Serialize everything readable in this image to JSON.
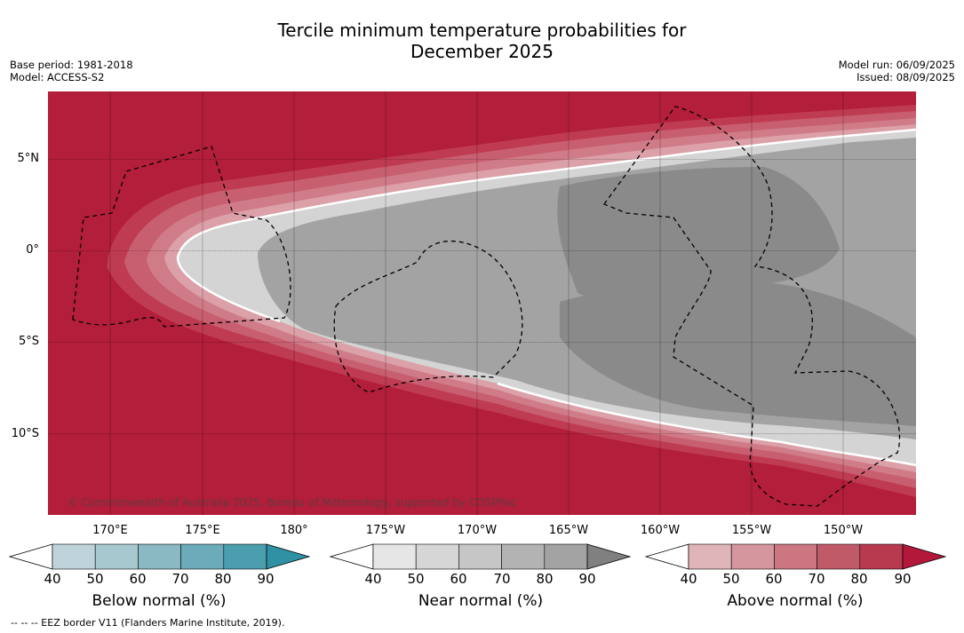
{
  "title_line1": "Tercile minimum temperature probabilities for",
  "title_line2": "December 2025",
  "meta": {
    "base_period": "Base period: 1981-2018",
    "model": "Model: ACCESS-S2",
    "model_run": "Model run: 06/09/2025",
    "issued": "Issued: 08/09/2025"
  },
  "map": {
    "lat_labels": [
      "5°N",
      "0°",
      "5°S",
      "10°S"
    ],
    "lon_labels": [
      "170°E",
      "175°E",
      "180°",
      "175°W",
      "170°W",
      "165°W",
      "160°W",
      "155°W",
      "150°W"
    ],
    "credit": "© Commonwealth of Australia 2025, Bureau of Meteorology, supported by COSPPac",
    "region_colors": {
      "above_90": "#b31e3a",
      "above_80": "#bf3b52",
      "above_70": "#c85f70",
      "above_60": "#d07b88",
      "above_50": "#dba0a8",
      "near_50": "#d4d4d4",
      "near_70": "#a3a3a3",
      "near_90": "#8a8a8a"
    }
  },
  "colorbars": {
    "below": {
      "title": "Below normal (%)",
      "ticks": [
        "40",
        "50",
        "60",
        "70",
        "80",
        "90"
      ],
      "colors": [
        "#bed3da",
        "#a8c8d0",
        "#8ab8c3",
        "#6babba",
        "#4b9ead",
        "#2f91a3"
      ]
    },
    "near": {
      "title": "Near normal (%)",
      "ticks": [
        "40",
        "50",
        "60",
        "70",
        "80",
        "90"
      ],
      "colors": [
        "#e6e6e6",
        "#d6d6d6",
        "#c6c6c6",
        "#b3b3b3",
        "#a3a3a3",
        "#808080"
      ]
    },
    "above": {
      "title": "Above normal (%)",
      "ticks": [
        "40",
        "50",
        "60",
        "70",
        "80",
        "90"
      ],
      "colors": [
        "#e0b5ba",
        "#d6969e",
        "#cb7681",
        "#c15a68",
        "#b73a4f",
        "#b3173a"
      ]
    }
  },
  "footnote": "--  --  -- EEZ border V11 (Flanders Marine Institute, 2019)."
}
